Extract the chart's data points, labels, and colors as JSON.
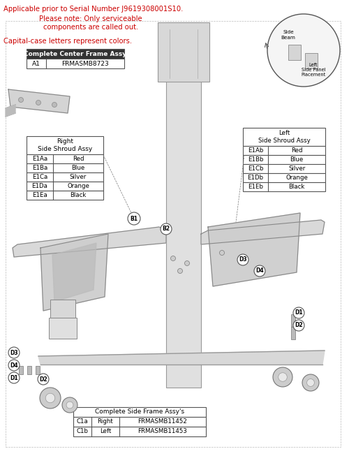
{
  "bg_color": "#ffffff",
  "header_text1": "Applicable prior to Serial Number J9619308001S10.",
  "header_text2": "Please note: Only serviceable",
  "header_text3": "components are called out.",
  "header_text4": "Capital-case letters represent colors.",
  "header_color": "#cc0000",
  "center_frame_title": "Complete Center Frame Assy",
  "center_frame_rows": [
    [
      "A1",
      "FRMASMB8723"
    ]
  ],
  "right_shroud_title": "Right\nSide Shroud Assy",
  "right_shroud_rows": [
    [
      "E1Aa",
      "Red"
    ],
    [
      "E1Ba",
      "Blue"
    ],
    [
      "E1Ca",
      "Silver"
    ],
    [
      "E1Da",
      "Orange"
    ],
    [
      "E1Ea",
      "Black"
    ]
  ],
  "left_shroud_title": "Left\nSide Shroud Assy",
  "left_shroud_rows": [
    [
      "E1Ab",
      "Red"
    ],
    [
      "E1Bb",
      "Blue"
    ],
    [
      "E1Cb",
      "Silver"
    ],
    [
      "E1Db",
      "Orange"
    ],
    [
      "E1Eb",
      "Black"
    ]
  ],
  "side_frame_title": "Complete Side Frame Assy's",
  "side_frame_rows": [
    [
      "C1a",
      "Right",
      "FRMASMB11452"
    ],
    [
      "C1b",
      "Left",
      "FRMASMB11453"
    ]
  ],
  "side_beam_label": "Side\nBeam",
  "left_side_panel_label": "Left\nSide Panel\nPlacement"
}
